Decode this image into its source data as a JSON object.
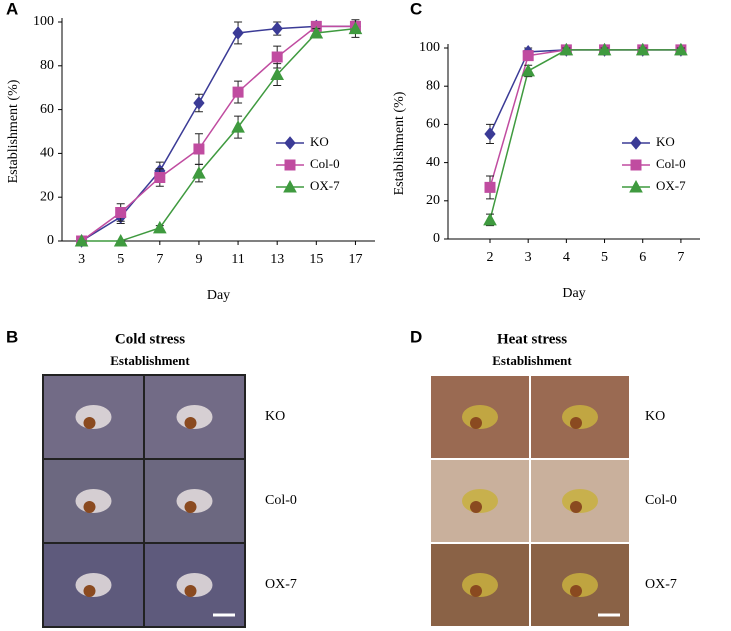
{
  "chart_data": [
    {
      "type": "line",
      "panel_label": "A",
      "x_label": "Day",
      "y_label": "Establishment (%)",
      "x": [
        3,
        5,
        7,
        9,
        11,
        13,
        15,
        17
      ],
      "xlim": [
        2,
        18
      ],
      "xticks": [
        3,
        5,
        7,
        9,
        11,
        13,
        15,
        17
      ],
      "ylim": [
        0,
        100
      ],
      "yticks": [
        0,
        20,
        40,
        60,
        80,
        100
      ],
      "legend": "center-right",
      "series": [
        {
          "name": "KO",
          "color": "#3b3b96",
          "marker": "diamond",
          "values": [
            0,
            11,
            32,
            63,
            95,
            97,
            98,
            98
          ],
          "errors": [
            0,
            3,
            4,
            4,
            5,
            3,
            2,
            2
          ]
        },
        {
          "name": "Col-0",
          "color": "#c04ca0",
          "marker": "square",
          "values": [
            0,
            13,
            29,
            42,
            68,
            84,
            98,
            98
          ],
          "errors": [
            0,
            4,
            4,
            7,
            5,
            5,
            2,
            2
          ]
        },
        {
          "name": "OX-7",
          "color": "#3f9a3f",
          "marker": "triangle",
          "values": [
            0,
            0,
            6,
            31,
            52,
            76,
            95,
            97
          ],
          "errors": [
            0,
            0,
            1,
            4,
            5,
            5,
            2,
            4
          ]
        }
      ]
    },
    {
      "type": "line",
      "panel_label": "C",
      "x_label": "Day",
      "y_label": "Establishment (%)",
      "x": [
        2,
        3,
        4,
        5,
        6,
        7
      ],
      "xlim": [
        0.9,
        7.5
      ],
      "xticks": [
        2,
        3,
        4,
        5,
        6,
        7
      ],
      "ylim": [
        0,
        100
      ],
      "yticks": [
        0,
        20,
        40,
        60,
        80,
        100
      ],
      "legend": "center-right",
      "series": [
        {
          "name": "KO",
          "color": "#3b3b96",
          "marker": "diamond",
          "values": [
            55,
            98,
            99,
            99,
            99,
            99
          ],
          "errors": [
            5,
            2,
            1,
            1,
            1,
            1
          ]
        },
        {
          "name": "Col-0",
          "color": "#c04ca0",
          "marker": "square",
          "values": [
            27,
            96,
            99,
            99,
            99,
            99
          ],
          "errors": [
            6,
            2,
            1,
            1,
            1,
            1
          ]
        },
        {
          "name": "OX-7",
          "color": "#3f9a3f",
          "marker": "triangle",
          "values": [
            10,
            88,
            99,
            99,
            99,
            99
          ],
          "errors": [
            3,
            3,
            1,
            1,
            1,
            1
          ]
        }
      ]
    }
  ],
  "photo_panels": [
    {
      "label": "B",
      "title": "Cold stress",
      "subtitle": "Establishment",
      "rows": [
        "KO",
        "Col-0",
        "OX-7"
      ]
    },
    {
      "label": "D",
      "title": "Heat stress",
      "subtitle": "Establishment",
      "rows": [
        "KO",
        "Col-0",
        "OX-7"
      ]
    }
  ]
}
